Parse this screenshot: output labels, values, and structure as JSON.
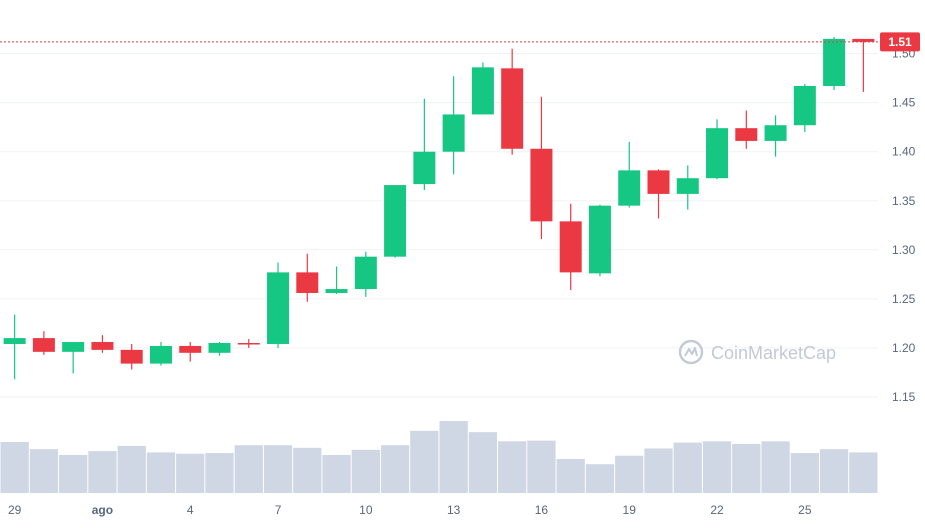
{
  "watermark": {
    "text": "CoinMarketCap",
    "icon": "coinmarketcap-logo-icon"
  },
  "current_price_label": "1.51",
  "colors": {
    "up": "#16c784",
    "down": "#ea3943",
    "volume": "#cfd6e4",
    "grid": "#eff2f5",
    "axis_text": "#58667e",
    "price_line": "#ea3943",
    "watermark": "#c2cad6"
  },
  "chart_data": {
    "type": "candlestick",
    "title": "",
    "xlabel": "",
    "ylabel": "",
    "ylim": [
      1.1,
      1.52
    ],
    "y_ticks": [
      "1.15",
      "1.20",
      "1.25",
      "1.30",
      "1.35",
      "1.40",
      "1.45",
      "1.50"
    ],
    "x_ticks": [
      {
        "index": 0,
        "label": "29"
      },
      {
        "index": 3,
        "label": "ago"
      },
      {
        "index": 6,
        "label": "4"
      },
      {
        "index": 9,
        "label": "7"
      },
      {
        "index": 12,
        "label": "10"
      },
      {
        "index": 15,
        "label": "13"
      },
      {
        "index": 18,
        "label": "16"
      },
      {
        "index": 21,
        "label": "19"
      },
      {
        "index": 24,
        "label": "22"
      },
      {
        "index": 27,
        "label": "25"
      }
    ],
    "last_price": 1.512,
    "grid": true,
    "candles": [
      {
        "open": 1.204,
        "high": 1.234,
        "low": 1.168,
        "close": 1.21,
        "volume": 0.78
      },
      {
        "open": 1.21,
        "high": 1.217,
        "low": 1.193,
        "close": 1.196,
        "volume": 0.67
      },
      {
        "open": 1.196,
        "high": 1.206,
        "low": 1.174,
        "close": 1.206,
        "volume": 0.58
      },
      {
        "open": 1.206,
        "high": 1.213,
        "low": 1.195,
        "close": 1.198,
        "volume": 0.64
      },
      {
        "open": 1.198,
        "high": 1.204,
        "low": 1.178,
        "close": 1.184,
        "volume": 0.72
      },
      {
        "open": 1.184,
        "high": 1.206,
        "low": 1.182,
        "close": 1.202,
        "volume": 0.62
      },
      {
        "open": 1.202,
        "high": 1.206,
        "low": 1.186,
        "close": 1.195,
        "volume": 0.6
      },
      {
        "open": 1.195,
        "high": 1.206,
        "low": 1.192,
        "close": 1.205,
        "volume": 0.61
      },
      {
        "open": 1.205,
        "high": 1.209,
        "low": 1.2,
        "close": 1.204,
        "volume": 0.73
      },
      {
        "open": 1.204,
        "high": 1.287,
        "low": 1.2,
        "close": 1.277,
        "volume": 0.73
      },
      {
        "open": 1.277,
        "high": 1.296,
        "low": 1.247,
        "close": 1.256,
        "volume": 0.69
      },
      {
        "open": 1.256,
        "high": 1.283,
        "low": 1.255,
        "close": 1.26,
        "volume": 0.58
      },
      {
        "open": 1.26,
        "high": 1.298,
        "low": 1.252,
        "close": 1.293,
        "volume": 0.66
      },
      {
        "open": 1.293,
        "high": 1.366,
        "low": 1.292,
        "close": 1.366,
        "volume": 0.73
      },
      {
        "open": 1.367,
        "high": 1.454,
        "low": 1.361,
        "close": 1.4,
        "volume": 0.95
      },
      {
        "open": 1.4,
        "high": 1.477,
        "low": 1.377,
        "close": 1.438,
        "volume": 1.1
      },
      {
        "open": 1.438,
        "high": 1.491,
        "low": 1.438,
        "close": 1.486,
        "volume": 0.93
      },
      {
        "open": 1.485,
        "high": 1.505,
        "low": 1.397,
        "close": 1.403,
        "volume": 0.79
      },
      {
        "open": 1.403,
        "high": 1.456,
        "low": 1.311,
        "close": 1.329,
        "volume": 0.8
      },
      {
        "open": 1.329,
        "high": 1.347,
        "low": 1.259,
        "close": 1.277,
        "volume": 0.52
      },
      {
        "open": 1.276,
        "high": 1.346,
        "low": 1.273,
        "close": 1.345,
        "volume": 0.44
      },
      {
        "open": 1.345,
        "high": 1.41,
        "low": 1.343,
        "close": 1.381,
        "volume": 0.57
      },
      {
        "open": 1.381,
        "high": 1.382,
        "low": 1.332,
        "close": 1.357,
        "volume": 0.68
      },
      {
        "open": 1.357,
        "high": 1.386,
        "low": 1.341,
        "close": 1.373,
        "volume": 0.77
      },
      {
        "open": 1.373,
        "high": 1.433,
        "low": 1.372,
        "close": 1.424,
        "volume": 0.79
      },
      {
        "open": 1.424,
        "high": 1.442,
        "low": 1.403,
        "close": 1.411,
        "volume": 0.75
      },
      {
        "open": 1.411,
        "high": 1.437,
        "low": 1.395,
        "close": 1.427,
        "volume": 0.79
      },
      {
        "open": 1.427,
        "high": 1.469,
        "low": 1.42,
        "close": 1.467,
        "volume": 0.61
      },
      {
        "open": 1.467,
        "high": 1.517,
        "low": 1.463,
        "close": 1.515,
        "volume": 0.67
      },
      {
        "open": 1.515,
        "high": 1.515,
        "low": 1.461,
        "close": 1.512,
        "volume": 0.62
      }
    ]
  }
}
